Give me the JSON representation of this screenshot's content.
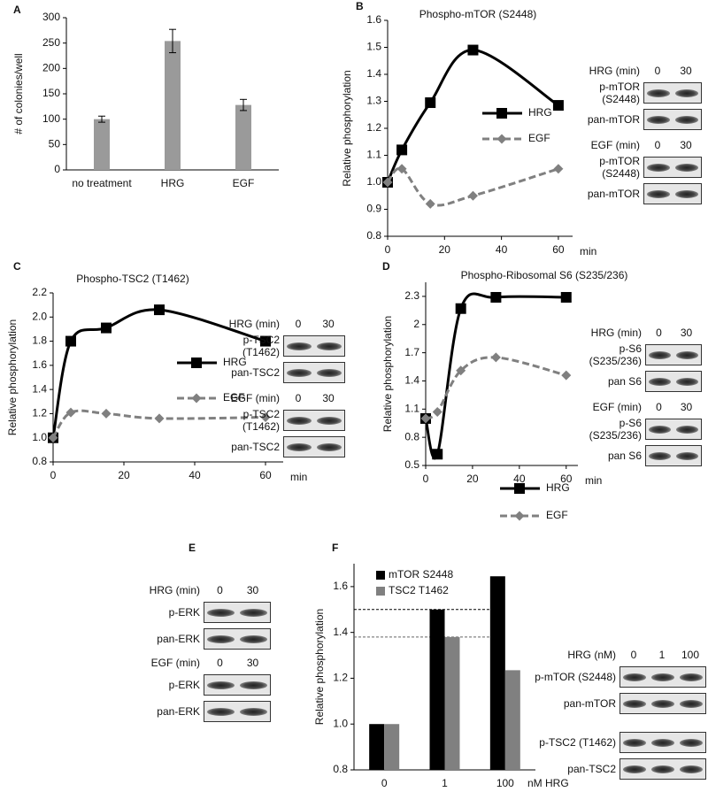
{
  "panels": [
    "A",
    "B",
    "C",
    "D",
    "E",
    "F"
  ],
  "chart_data": [
    {
      "type": "bar",
      "ylabel": "# of colonies/well",
      "categories": [
        "no treatment",
        "HRG",
        "EGF"
      ],
      "values": [
        100,
        254,
        128
      ],
      "errors": [
        6,
        23,
        11
      ],
      "color": "#9a9a9a",
      "ylim": [
        0,
        300
      ],
      "yticks": [
        0,
        50,
        100,
        150,
        200,
        250,
        300
      ]
    },
    {
      "type": "line",
      "title": "Phospho-mTOR (S2448)",
      "ylabel": "Relative phosphorylation",
      "xlabel": "min",
      "x": [
        0,
        5,
        15,
        30,
        60
      ],
      "series": [
        {
          "name": "HRG",
          "color": "#000000",
          "marker": "square",
          "dash": false,
          "values": [
            1.0,
            1.12,
            1.295,
            1.49,
            1.285
          ]
        },
        {
          "name": "EGF",
          "color": "#808080",
          "marker": "diamond",
          "dash": true,
          "values": [
            1.0,
            1.05,
            0.92,
            0.95,
            1.05
          ]
        }
      ],
      "xlim": [
        0,
        65
      ],
      "xticks": [
        0,
        20,
        40,
        60
      ],
      "ylim": [
        0.8,
        1.6
      ],
      "yticks": [
        0.8,
        0.9,
        {
          "value": 1,
          "label": "1.0"
        },
        1.1,
        1.2,
        1.3,
        1.4,
        1.5,
        1.6
      ]
    },
    {
      "type": "line",
      "title": "Phospho-TSC2 (T1462)",
      "ylabel": "Relative phosphorylation",
      "xlabel": "min",
      "x": [
        0,
        5,
        15,
        30,
        60
      ],
      "series": [
        {
          "name": "HRG",
          "color": "#000000",
          "marker": "square",
          "dash": false,
          "values": [
            1.0,
            1.8,
            1.91,
            2.06,
            1.8
          ]
        },
        {
          "name": "EGF",
          "color": "#808080",
          "marker": "diamond",
          "dash": true,
          "values": [
            1.0,
            1.21,
            1.2,
            1.16,
            1.17
          ]
        }
      ],
      "xlim": [
        0,
        65
      ],
      "xticks": [
        0,
        20,
        40,
        60
      ],
      "ylim": [
        0.8,
        2.2
      ],
      "yticks": [
        0.8,
        {
          "value": 1,
          "label": "1.0"
        },
        1.2,
        1.4,
        1.6,
        1.8,
        {
          "value": 2,
          "label": "2.0"
        },
        2.2
      ]
    },
    {
      "type": "line",
      "title": "Phospho-Ribosomal S6 (S235/236)",
      "ylabel": "Relative phosphorylation",
      "xlabel": "min",
      "x": [
        0,
        5,
        15,
        30,
        60
      ],
      "series": [
        {
          "name": "HRG",
          "color": "#000000",
          "marker": "square",
          "dash": false,
          "values": [
            1.0,
            0.62,
            2.17,
            2.29,
            2.29
          ]
        },
        {
          "name": "EGF",
          "color": "#808080",
          "marker": "diamond",
          "dash": true,
          "values": [
            1.0,
            1.07,
            1.51,
            1.65,
            1.46
          ]
        }
      ],
      "xlim": [
        0,
        65
      ],
      "xticks": [
        0,
        20,
        40,
        60
      ],
      "ylim": [
        0.5,
        2.45
      ],
      "yticks": [
        0.5,
        0.8,
        1.1,
        1.4,
        1.7,
        2,
        2.3
      ]
    },
    {
      "type": "grouped_bar",
      "ylabel": "Relative phosphorylation",
      "xlabel": "nM HRG",
      "categories": [
        "0",
        "1",
        "100"
      ],
      "series": [
        {
          "name": "mTOR S2448",
          "color": "#000000",
          "values": [
            1.0,
            1.5,
            1.645
          ]
        },
        {
          "name": "TSC2 T1462",
          "color": "#808080",
          "values": [
            1.0,
            1.38,
            1.235
          ]
        }
      ],
      "reference_lines": [
        1.5,
        1.38
      ],
      "legend": "upper left",
      "ylim": [
        0.8,
        1.7
      ],
      "yticks": [
        0.8,
        {
          "value": 1,
          "label": "1.0"
        },
        1.2,
        1.4,
        1.6
      ]
    }
  ],
  "blots": {
    "B": {
      "groups": [
        {
          "treatment": "HRG (min)",
          "times": [
            "0",
            "30"
          ],
          "rows": [
            "p-mTOR (S2448)",
            "pan-mTOR"
          ]
        },
        {
          "treatment": "EGF (min)",
          "times": [
            "0",
            "30"
          ],
          "rows": [
            "p-mTOR (S2448)",
            "pan-mTOR"
          ]
        }
      ]
    },
    "C": {
      "groups": [
        {
          "treatment": "HRG (min)",
          "times": [
            "0",
            "30"
          ],
          "rows": [
            "p-TSC2 (T1462)",
            "pan-TSC2"
          ]
        },
        {
          "treatment": "EGF (min)",
          "times": [
            "0",
            "30"
          ],
          "rows": [
            "p-TSC2 (T1462)",
            "pan-TSC2"
          ]
        }
      ]
    },
    "D": {
      "groups": [
        {
          "treatment": "HRG (min)",
          "times": [
            "0",
            "30"
          ],
          "rows": [
            "p-S6 (S235/236)",
            "pan S6"
          ]
        },
        {
          "treatment": "EGF (min)",
          "times": [
            "0",
            "30"
          ],
          "rows": [
            "p-S6 (S235/236)",
            "pan S6"
          ]
        }
      ]
    },
    "E": {
      "groups": [
        {
          "treatment": "HRG (min)",
          "times": [
            "0",
            "30"
          ],
          "rows": [
            "p-ERK",
            "pan-ERK"
          ]
        },
        {
          "treatment": "EGF (min)",
          "times": [
            "0",
            "30"
          ],
          "rows": [
            "p-ERK",
            "pan-ERK"
          ]
        }
      ]
    },
    "F": {
      "groups": [
        {
          "treatment": "HRG (nM)",
          "times": [
            "0",
            "1",
            "100"
          ],
          "rows": [
            "p-mTOR (S2448)",
            "pan-mTOR"
          ]
        },
        {
          "rows": [
            "p-TSC2 (T1462)",
            "pan-TSC2"
          ]
        }
      ]
    }
  }
}
